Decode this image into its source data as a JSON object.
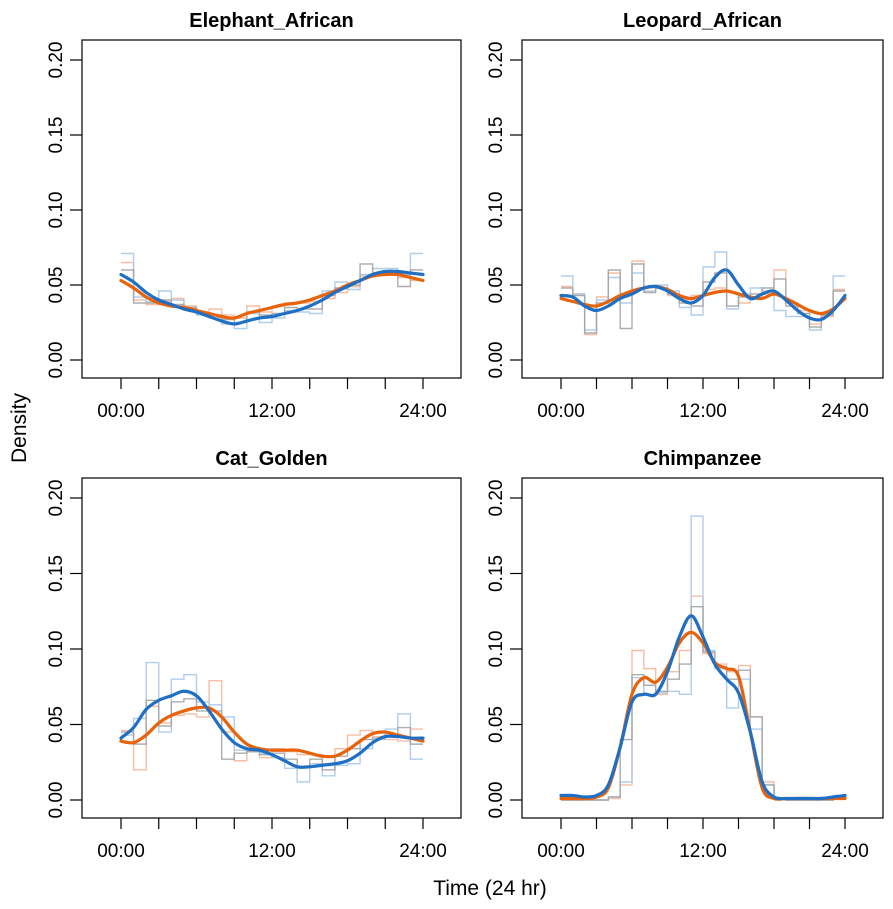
{
  "figure": {
    "ylabel": "Density",
    "xlabel": "Time (24 hr)"
  },
  "colors": {
    "kernel_orange": "#e8620a",
    "kernel_blue": "#1f6fc4",
    "hist_orange": "#f6b79a",
    "hist_blue": "#a9c8ea",
    "hist_grey": "#a4a4a4",
    "axis": "#000000"
  },
  "chart_data": [
    {
      "type": "line",
      "title": "Elephant_African",
      "xlim": [
        0,
        24
      ],
      "ylim": [
        0,
        0.2
      ],
      "xticks": [
        "00:00",
        "12:00",
        "24:00"
      ],
      "yticks": [
        "0.00",
        "0.05",
        "0.10",
        "0.15",
        "0.20"
      ],
      "x": [
        0,
        1,
        2,
        3,
        4,
        5,
        6,
        7,
        8,
        9,
        10,
        11,
        12,
        13,
        14,
        15,
        16,
        17,
        18,
        19,
        20,
        21,
        22,
        23,
        24
      ],
      "series": [
        {
          "color": "orange",
          "values": [
            0.053,
            0.048,
            0.042,
            0.038,
            0.036,
            0.035,
            0.033,
            0.031,
            0.029,
            0.028,
            0.031,
            0.033,
            0.035,
            0.037,
            0.038,
            0.04,
            0.043,
            0.046,
            0.05,
            0.053,
            0.056,
            0.057,
            0.057,
            0.055,
            0.053
          ]
        },
        {
          "color": "blue",
          "values": [
            0.057,
            0.052,
            0.045,
            0.04,
            0.037,
            0.034,
            0.032,
            0.029,
            0.026,
            0.024,
            0.026,
            0.028,
            0.029,
            0.031,
            0.033,
            0.036,
            0.04,
            0.045,
            0.049,
            0.053,
            0.057,
            0.059,
            0.059,
            0.058,
            0.057
          ]
        }
      ],
      "histograms": [
        {
          "color": "orange",
          "values": [
            0.065,
            0.04,
            0.037,
            0.039,
            0.041,
            0.036,
            0.032,
            0.034,
            0.03,
            0.028,
            0.036,
            0.032,
            0.036,
            0.038,
            0.038,
            0.039,
            0.041,
            0.045,
            0.049,
            0.056,
            0.058,
            0.059,
            0.055,
            0.053
          ]
        },
        {
          "color": "blue",
          "values": [
            0.071,
            0.042,
            0.039,
            0.046,
            0.04,
            0.034,
            0.03,
            0.028,
            0.024,
            0.021,
            0.031,
            0.025,
            0.028,
            0.033,
            0.032,
            0.031,
            0.046,
            0.052,
            0.047,
            0.057,
            0.061,
            0.061,
            0.057,
            0.071
          ]
        },
        {
          "color": "grey",
          "values": [
            0.06,
            0.038,
            0.038,
            0.04,
            0.037,
            0.035,
            0.031,
            0.03,
            0.027,
            0.025,
            0.032,
            0.03,
            0.031,
            0.035,
            0.034,
            0.034,
            0.043,
            0.048,
            0.05,
            0.064,
            0.058,
            0.058,
            0.049,
            0.06
          ]
        }
      ]
    },
    {
      "type": "line",
      "title": "Leopard_African",
      "xlim": [
        0,
        24
      ],
      "ylim": [
        0,
        0.2
      ],
      "xticks": [
        "00:00",
        "12:00",
        "24:00"
      ],
      "yticks": [
        "0.00",
        "0.05",
        "0.10",
        "0.15",
        "0.20"
      ],
      "x": [
        0,
        1,
        2,
        3,
        4,
        5,
        6,
        7,
        8,
        9,
        10,
        11,
        12,
        13,
        14,
        15,
        16,
        17,
        18,
        19,
        20,
        21,
        22,
        23,
        24
      ],
      "series": [
        {
          "color": "orange",
          "values": [
            0.041,
            0.039,
            0.037,
            0.036,
            0.039,
            0.043,
            0.046,
            0.048,
            0.049,
            0.047,
            0.043,
            0.041,
            0.043,
            0.045,
            0.046,
            0.044,
            0.042,
            0.041,
            0.044,
            0.041,
            0.037,
            0.033,
            0.031,
            0.034,
            0.041
          ]
        },
        {
          "color": "blue",
          "values": [
            0.043,
            0.042,
            0.036,
            0.033,
            0.036,
            0.041,
            0.044,
            0.048,
            0.049,
            0.046,
            0.041,
            0.038,
            0.043,
            0.055,
            0.06,
            0.05,
            0.041,
            0.044,
            0.046,
            0.04,
            0.033,
            0.028,
            0.027,
            0.033,
            0.043
          ]
        }
      ],
      "histograms": [
        {
          "color": "orange",
          "values": [
            0.049,
            0.044,
            0.017,
            0.042,
            0.058,
            0.044,
            0.066,
            0.049,
            0.048,
            0.043,
            0.04,
            0.043,
            0.047,
            0.048,
            0.045,
            0.038,
            0.042,
            0.044,
            0.06,
            0.038,
            0.033,
            0.024,
            0.029,
            0.047
          ]
        },
        {
          "color": "blue",
          "values": [
            0.056,
            0.044,
            0.02,
            0.04,
            0.055,
            0.038,
            0.058,
            0.046,
            0.05,
            0.046,
            0.035,
            0.03,
            0.062,
            0.072,
            0.034,
            0.044,
            0.048,
            0.046,
            0.033,
            0.029,
            0.029,
            0.02,
            0.031,
            0.056
          ]
        },
        {
          "color": "grey",
          "values": [
            0.048,
            0.043,
            0.018,
            0.038,
            0.06,
            0.021,
            0.064,
            0.045,
            0.048,
            0.044,
            0.038,
            0.036,
            0.052,
            0.058,
            0.036,
            0.042,
            0.044,
            0.048,
            0.054,
            0.036,
            0.031,
            0.022,
            0.03,
            0.046
          ]
        }
      ]
    },
    {
      "type": "line",
      "title": "Cat_Golden",
      "xlim": [
        0,
        24
      ],
      "ylim": [
        0,
        0.2
      ],
      "xticks": [
        "00:00",
        "12:00",
        "24:00"
      ],
      "yticks": [
        "0.00",
        "0.05",
        "0.10",
        "0.15",
        "0.20"
      ],
      "x": [
        0,
        1,
        2,
        3,
        4,
        5,
        6,
        7,
        8,
        9,
        10,
        11,
        12,
        13,
        14,
        15,
        16,
        17,
        18,
        19,
        20,
        21,
        22,
        23,
        24
      ],
      "series": [
        {
          "color": "orange",
          "values": [
            0.039,
            0.038,
            0.043,
            0.051,
            0.056,
            0.059,
            0.061,
            0.061,
            0.055,
            0.045,
            0.037,
            0.034,
            0.033,
            0.033,
            0.033,
            0.031,
            0.029,
            0.029,
            0.033,
            0.039,
            0.044,
            0.045,
            0.043,
            0.041,
            0.039
          ]
        },
        {
          "color": "blue",
          "values": [
            0.041,
            0.048,
            0.06,
            0.066,
            0.069,
            0.072,
            0.069,
            0.059,
            0.047,
            0.038,
            0.034,
            0.033,
            0.03,
            0.026,
            0.022,
            0.022,
            0.023,
            0.024,
            0.026,
            0.031,
            0.038,
            0.042,
            0.042,
            0.041,
            0.041
          ]
        }
      ],
      "histograms": [
        {
          "color": "orange",
          "values": [
            0.046,
            0.02,
            0.062,
            0.051,
            0.056,
            0.057,
            0.055,
            0.079,
            0.045,
            0.026,
            0.033,
            0.028,
            0.034,
            0.032,
            0.03,
            0.03,
            0.024,
            0.034,
            0.043,
            0.046,
            0.042,
            0.04,
            0.039,
            0.047
          ]
        },
        {
          "color": "blue",
          "values": [
            0.043,
            0.054,
            0.091,
            0.045,
            0.08,
            0.083,
            0.065,
            0.063,
            0.055,
            0.033,
            0.032,
            0.031,
            0.028,
            0.021,
            0.012,
            0.024,
            0.016,
            0.023,
            0.024,
            0.034,
            0.04,
            0.047,
            0.057,
            0.027
          ]
        },
        {
          "color": "grey",
          "values": [
            0.045,
            0.037,
            0.066,
            0.049,
            0.065,
            0.067,
            0.059,
            0.059,
            0.027,
            0.031,
            0.032,
            0.03,
            0.031,
            0.027,
            0.022,
            0.027,
            0.02,
            0.029,
            0.034,
            0.04,
            0.041,
            0.043,
            0.048,
            0.037
          ]
        }
      ]
    },
    {
      "type": "line",
      "title": "Chimpanzee",
      "xlim": [
        0,
        24
      ],
      "ylim": [
        0,
        0.2
      ],
      "xticks": [
        "00:00",
        "12:00",
        "24:00"
      ],
      "yticks": [
        "0.00",
        "0.05",
        "0.10",
        "0.15",
        "0.20"
      ],
      "x": [
        0,
        1,
        2,
        3,
        4,
        5,
        6,
        7,
        8,
        9,
        10,
        11,
        12,
        13,
        14,
        15,
        16,
        17,
        18,
        19,
        20,
        21,
        22,
        23,
        24
      ],
      "series": [
        {
          "color": "orange",
          "values": [
            0.001,
            0.001,
            0.001,
            0.002,
            0.008,
            0.035,
            0.07,
            0.081,
            0.078,
            0.088,
            0.104,
            0.111,
            0.104,
            0.091,
            0.087,
            0.082,
            0.045,
            0.008,
            0.001,
            0.001,
            0.001,
            0.001,
            0.001,
            0.001,
            0.001
          ]
        },
        {
          "color": "blue",
          "values": [
            0.003,
            0.003,
            0.002,
            0.003,
            0.01,
            0.035,
            0.065,
            0.07,
            0.07,
            0.085,
            0.108,
            0.122,
            0.108,
            0.09,
            0.08,
            0.071,
            0.045,
            0.012,
            0.002,
            0.001,
            0.001,
            0.001,
            0.001,
            0.002,
            0.003
          ]
        }
      ],
      "histograms": [
        {
          "color": "orange",
          "values": [
            0.0,
            0.0,
            0.0,
            0.0,
            0.001,
            0.01,
            0.099,
            0.087,
            0.07,
            0.085,
            0.099,
            0.135,
            0.097,
            0.09,
            0.085,
            0.089,
            0.055,
            0.012,
            0.001,
            0.0,
            0.0,
            0.0,
            0.0,
            0.001
          ]
        },
        {
          "color": "blue",
          "values": [
            0.0,
            0.0,
            0.0,
            0.0,
            0.002,
            0.012,
            0.081,
            0.07,
            0.071,
            0.072,
            0.07,
            0.188,
            0.099,
            0.087,
            0.061,
            0.08,
            0.047,
            0.01,
            0.001,
            0.0,
            0.0,
            0.0,
            0.0,
            0.003
          ]
        },
        {
          "color": "grey",
          "values": [
            0.0,
            0.0,
            0.0,
            0.0,
            0.002,
            0.04,
            0.083,
            0.076,
            0.072,
            0.08,
            0.09,
            0.128,
            0.098,
            0.088,
            0.08,
            0.086,
            0.055,
            0.01,
            0.001,
            0.0,
            0.0,
            0.0,
            0.0,
            0.002
          ]
        }
      ]
    }
  ]
}
